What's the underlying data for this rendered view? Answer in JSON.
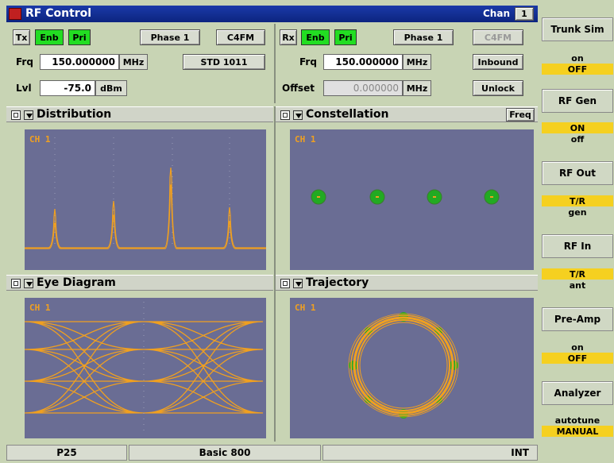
{
  "window": {
    "title": "RF Control",
    "chan_label": "Chan",
    "chan_value": "1"
  },
  "tx": {
    "label": "Tx",
    "enb": "Enb",
    "pri": "Pri",
    "phase": "Phase 1",
    "mod": "C4FM",
    "frq_label": "Frq",
    "frq_value": "150.000000",
    "frq_unit": "MHz",
    "std": "STD 1011",
    "lvl_label": "Lvl",
    "lvl_value": "-75.0",
    "lvl_unit": "dBm"
  },
  "rx": {
    "label": "Rx",
    "enb": "Enb",
    "pri": "Pri",
    "phase": "Phase 1",
    "mod": "C4FM",
    "frq_label": "Frq",
    "frq_value": "150.000000",
    "frq_unit": "MHz",
    "inbound": "Inbound",
    "offset_label": "Offset",
    "offset_value": "0.000000",
    "offset_unit": "MHz",
    "unlock": "Unlock"
  },
  "panels": {
    "distribution": {
      "title": "Distribution",
      "ch": "CH 1"
    },
    "constellation": {
      "title": "Constellation",
      "ch": "CH 1",
      "freq_btn": "Freq"
    },
    "eye": {
      "title": "Eye Diagram",
      "ch": "CH 1"
    },
    "trajectory": {
      "title": "Trajectory",
      "ch": "CH 1"
    }
  },
  "menu": [
    {
      "title": "Trunk Sim",
      "opt1": "on",
      "opt2": "OFF",
      "selected": 2
    },
    {
      "title": "RF Gen",
      "opt1": "ON",
      "opt2": "off",
      "selected": 1
    },
    {
      "title": "RF Out",
      "opt1": "T/R",
      "opt2": "gen",
      "selected": 1
    },
    {
      "title": "RF In",
      "opt1": "T/R",
      "opt2": "ant",
      "selected": 1
    },
    {
      "title": "Pre-Amp",
      "opt1": "on",
      "opt2": "OFF",
      "selected": 2
    },
    {
      "title": "Analyzer",
      "opt1": "autotune",
      "opt2": "MANUAL",
      "selected": 2
    }
  ],
  "status": {
    "left": "P25",
    "middle": "Basic 800",
    "right": "INT"
  },
  "colors": {
    "trace": "#f0a020",
    "symbol": "#22aa22",
    "plot_bg": "#6a6d94",
    "title_bg": "#1a3aa8",
    "enable_green": "#22dd22",
    "selected_yellow": "#f5d020"
  }
}
